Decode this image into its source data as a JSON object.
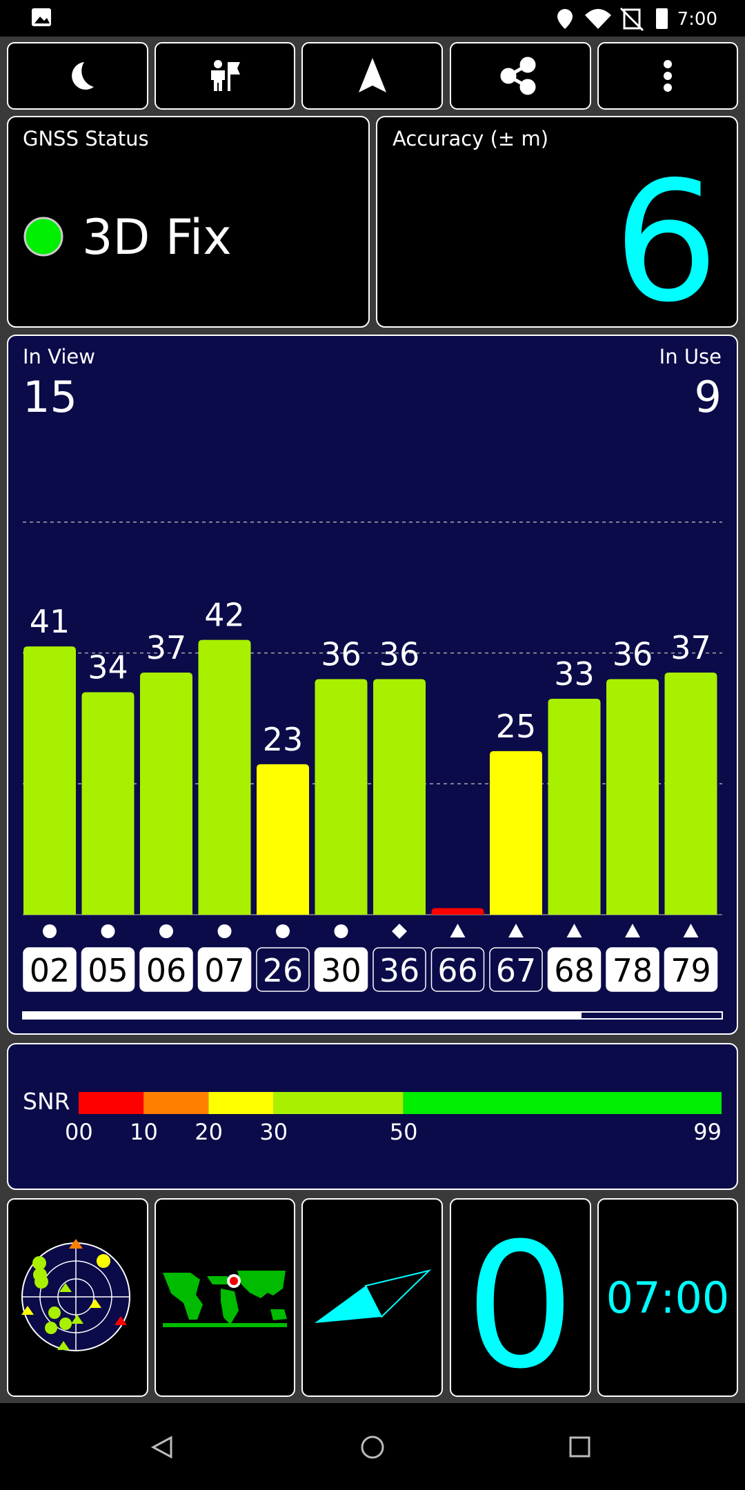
{
  "status_bar": {
    "time": "7:00"
  },
  "gnss": {
    "label": "GNSS Status",
    "status": "3D Fix",
    "indicator_color": "#00ee00"
  },
  "accuracy": {
    "label": "Accuracy (± m)",
    "value": 6
  },
  "sky": {
    "in_view_label": "In View",
    "in_view": 15,
    "in_use_label": "In Use",
    "in_use": 9,
    "ylim": [
      0,
      70
    ],
    "grid_lines": [
      20,
      40,
      60
    ],
    "satellites": [
      {
        "id": "02",
        "snr": 41,
        "color": "#a8f000",
        "symbol": "circle",
        "in_use": true
      },
      {
        "id": "05",
        "snr": 34,
        "color": "#a8f000",
        "symbol": "circle",
        "in_use": true
      },
      {
        "id": "06",
        "snr": 37,
        "color": "#a8f000",
        "symbol": "circle",
        "in_use": true
      },
      {
        "id": "07",
        "snr": 42,
        "color": "#a8f000",
        "symbol": "circle",
        "in_use": true
      },
      {
        "id": "26",
        "snr": 23,
        "color": "#ffff00",
        "symbol": "circle",
        "in_use": false
      },
      {
        "id": "30",
        "snr": 36,
        "color": "#a8f000",
        "symbol": "circle",
        "in_use": true
      },
      {
        "id": "36",
        "snr": 36,
        "color": "#a8f000",
        "symbol": "diamond",
        "in_use": false
      },
      {
        "id": "66",
        "snr": 1,
        "color": "#ff0000",
        "symbol": "triangle",
        "in_use": false,
        "show_value": false
      },
      {
        "id": "67",
        "snr": 25,
        "color": "#ffff00",
        "symbol": "triangle",
        "in_use": false
      },
      {
        "id": "68",
        "snr": 33,
        "color": "#a8f000",
        "symbol": "triangle",
        "in_use": true
      },
      {
        "id": "78",
        "snr": 36,
        "color": "#a8f000",
        "symbol": "triangle",
        "in_use": true
      },
      {
        "id": "79",
        "snr": 37,
        "color": "#a8f000",
        "symbol": "triangle",
        "in_use": true
      }
    ]
  },
  "snr_legend": {
    "label": "SNR",
    "xlim": [
      0,
      99
    ],
    "segments": [
      {
        "to": 10,
        "color": "#ff0000"
      },
      {
        "to": 20,
        "color": "#ff8000"
      },
      {
        "to": 30,
        "color": "#ffff00"
      },
      {
        "to": 50,
        "color": "#a8f000"
      },
      {
        "to": 99,
        "color": "#00ee00"
      }
    ],
    "ticks": [
      {
        "value": 0,
        "label": "00"
      },
      10,
      20,
      30,
      50,
      99
    ]
  },
  "tiles": {
    "speed": 0,
    "clock": "07:00"
  }
}
